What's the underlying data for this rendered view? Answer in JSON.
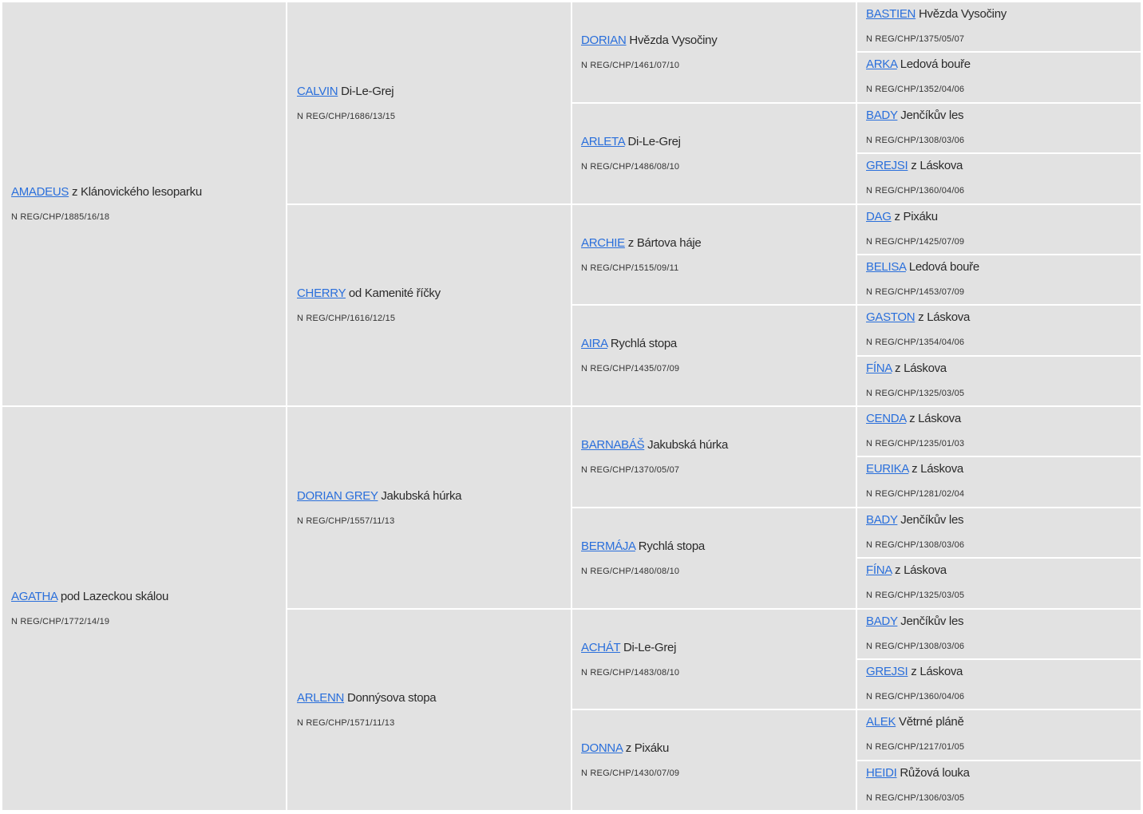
{
  "gen1": [
    {
      "link": "AMADEUS",
      "rest": "z Klánovického lesoparku",
      "reg": "N REG/CHP/1885/16/18"
    },
    {
      "link": "AGATHA",
      "rest": "pod Lazeckou skálou",
      "reg": "N REG/CHP/1772/14/19"
    }
  ],
  "gen2": [
    {
      "link": "CALVIN",
      "rest": "Di-Le-Grej",
      "reg": "N REG/CHP/1686/13/15"
    },
    {
      "link": "CHERRY",
      "rest": "od Kamenité říčky",
      "reg": "N REG/CHP/1616/12/15"
    },
    {
      "link": "DORIAN GREY",
      "rest": "Jakubská húrka",
      "reg": "N REG/CHP/1557/11/13"
    },
    {
      "link": "ARLENN",
      "rest": "Donnýsova stopa",
      "reg": "N REG/CHP/1571/11/13"
    }
  ],
  "gen3": [
    {
      "link": "DORIAN",
      "rest": "Hvězda Vysočiny",
      "reg": "N REG/CHP/1461/07/10"
    },
    {
      "link": "ARLETA",
      "rest": "Di-Le-Grej",
      "reg": "N REG/CHP/1486/08/10"
    },
    {
      "link": "ARCHIE",
      "rest": "z Bártova háje",
      "reg": "N REG/CHP/1515/09/11"
    },
    {
      "link": "AIRA",
      "rest": "Rychlá stopa",
      "reg": "N REG/CHP/1435/07/09"
    },
    {
      "link": "BARNABÁŠ",
      "rest": "Jakubská húrka",
      "reg": "N REG/CHP/1370/05/07"
    },
    {
      "link": "BERMÁJA",
      "rest": "Rychlá stopa",
      "reg": "N REG/CHP/1480/08/10"
    },
    {
      "link": "ACHÁT",
      "rest": "Di-Le-Grej",
      "reg": "N REG/CHP/1483/08/10"
    },
    {
      "link": "DONNA",
      "rest": "z Pixáku",
      "reg": "N REG/CHP/1430/07/09"
    }
  ],
  "gen4": [
    {
      "link": "BASTIEN",
      "rest": "Hvězda Vysočiny",
      "reg": "N REG/CHP/1375/05/07"
    },
    {
      "link": "ARKA",
      "rest": "Ledová bouře",
      "reg": "N REG/CHP/1352/04/06"
    },
    {
      "link": "BADY",
      "rest": "Jenčíkův les",
      "reg": "N REG/CHP/1308/03/06"
    },
    {
      "link": "GREJSI",
      "rest": "z Láskova",
      "reg": "N REG/CHP/1360/04/06"
    },
    {
      "link": "DAG",
      "rest": "z Pixáku",
      "reg": "N REG/CHP/1425/07/09"
    },
    {
      "link": "BELISA",
      "rest": "Ledová bouře",
      "reg": "N REG/CHP/1453/07/09"
    },
    {
      "link": "GASTON",
      "rest": "z Láskova",
      "reg": "N REG/CHP/1354/04/06"
    },
    {
      "link": "FÍNA",
      "rest": "z Láskova",
      "reg": "N REG/CHP/1325/03/05"
    },
    {
      "link": "CENDA",
      "rest": "z Láskova",
      "reg": "N REG/CHP/1235/01/03"
    },
    {
      "link": "EURIKA",
      "rest": "z Láskova",
      "reg": "N REG/CHP/1281/02/04"
    },
    {
      "link": "BADY",
      "rest": "Jenčíkův les",
      "reg": "N REG/CHP/1308/03/06"
    },
    {
      "link": "FÍNA",
      "rest": "z Láskova",
      "reg": "N REG/CHP/1325/03/05"
    },
    {
      "link": "BADY",
      "rest": "Jenčíkův les",
      "reg": "N REG/CHP/1308/03/06"
    },
    {
      "link": "GREJSI",
      "rest": "z Láskova",
      "reg": "N REG/CHP/1360/04/06"
    },
    {
      "link": "ALEK",
      "rest": "Větrné pláně",
      "reg": "N REG/CHP/1217/01/05"
    },
    {
      "link": "HEIDI",
      "rest": "Růžová louka",
      "reg": "N REG/CHP/1306/03/05"
    }
  ]
}
